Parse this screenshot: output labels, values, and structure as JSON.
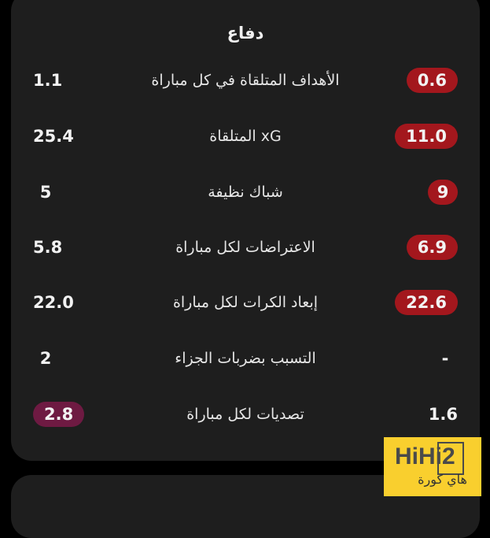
{
  "section_title": "دفاع",
  "colors": {
    "red_badge": "#a3171d",
    "purple_badge": "#6e1a42",
    "card": "#1e1e1e"
  },
  "rows": [
    {
      "label": "الأهداف المتلقاة في كل مباراة",
      "right": "0.6",
      "left": "1.1",
      "badge": "right",
      "badge_color": "red"
    },
    {
      "label": "xG المتلقاة",
      "right": "11.0",
      "left": "25.4",
      "badge": "right",
      "badge_color": "red"
    },
    {
      "label": "شباك نظيفة",
      "right": "9",
      "left": "5",
      "badge": "right",
      "badge_color": "red"
    },
    {
      "label": "الاعتراضات لكل مباراة",
      "right": "6.9",
      "left": "5.8",
      "badge": "right",
      "badge_color": "red"
    },
    {
      "label": "إبعاد الكرات لكل مباراة",
      "right": "22.6",
      "left": "22.0",
      "badge": "right",
      "badge_color": "red"
    },
    {
      "label": "التسبب بضربات الجزاء",
      "right": "-",
      "left": "2",
      "badge": "none"
    },
    {
      "label": "تصديات لكل مباراة",
      "right": "1.6",
      "left": "2.8",
      "badge": "left",
      "badge_color": "purple"
    }
  ],
  "watermark": {
    "logo": "HiHi2",
    "arabic": "هاي كورة"
  }
}
